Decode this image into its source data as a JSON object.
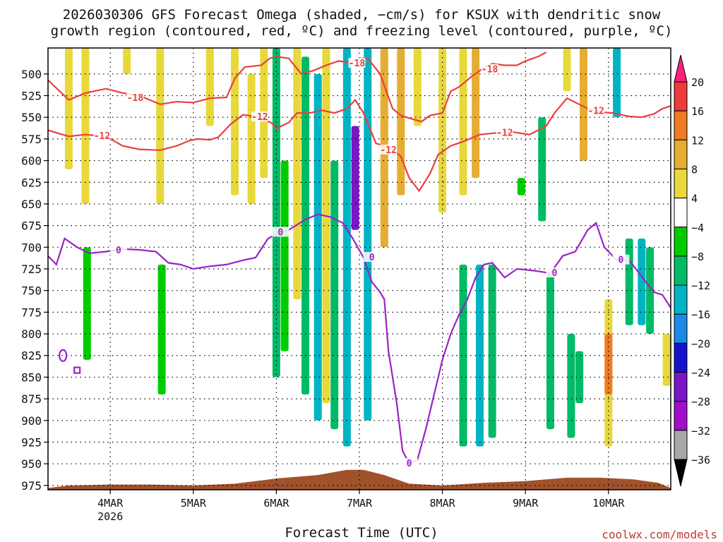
{
  "chart_data": {
    "type": "heatmap",
    "title_line1": "2026030306 GFS Forecast Omega (shaded, −cm/s) for KSUX with dendritic snow",
    "title_line2": "growth region (contoured, red, ºC) and freezing level (contoured, purple, ºC)",
    "xlabel": "Forecast Time (UTC)",
    "credit": "coolwx.com/models",
    "x_ticks": [
      {
        "label": "4MAR",
        "day": 4
      },
      {
        "label": "5MAR",
        "day": 5
      },
      {
        "label": "6MAR",
        "day": 6
      },
      {
        "label": "7MAR",
        "day": 7
      },
      {
        "label": "8MAR",
        "day": 8
      },
      {
        "label": "9MAR",
        "day": 9
      },
      {
        "label": "10MAR",
        "day": 10
      }
    ],
    "x_sublabel": "2026",
    "xlim": [
      3.25,
      10.75
    ],
    "y_ticks": [
      500,
      525,
      550,
      575,
      600,
      625,
      650,
      675,
      700,
      725,
      750,
      775,
      800,
      825,
      850,
      875,
      900,
      925,
      950,
      975
    ],
    "ylim": [
      470,
      980
    ],
    "grid": true,
    "colorbar": {
      "labels": [
        "20",
        "16",
        "12",
        "8",
        "4",
        "−4",
        "−8",
        "−12",
        "−16",
        "−20",
        "−24",
        "−28",
        "−32",
        "−36"
      ],
      "colors": [
        "#ff1f7a",
        "#ee3a3a",
        "#ef7b22",
        "#e5ad31",
        "#e8d83a",
        "#ffffff",
        "#00cc00",
        "#00bb66",
        "#00b4c4",
        "#1b8ae6",
        "#1414cc",
        "#7a16c6",
        "#a20ccc",
        "#a8a8a8",
        "#000000"
      ]
    },
    "shading": [
      {
        "day": 3.5,
        "p0": 470,
        "p1": 610,
        "value": 5
      },
      {
        "day": 3.7,
        "p0": 470,
        "p1": 650,
        "value": 5
      },
      {
        "day": 3.72,
        "p0": 700,
        "p1": 830,
        "value": -7
      },
      {
        "day": 4.2,
        "p0": 470,
        "p1": 500,
        "value": 5
      },
      {
        "day": 4.6,
        "p0": 470,
        "p1": 650,
        "value": 5
      },
      {
        "day": 4.62,
        "p0": 720,
        "p1": 870,
        "value": -7
      },
      {
        "day": 5.2,
        "p0": 470,
        "p1": 560,
        "value": 5
      },
      {
        "day": 5.5,
        "p0": 470,
        "p1": 640,
        "value": 5
      },
      {
        "day": 5.7,
        "p0": 500,
        "p1": 650,
        "value": 5
      },
      {
        "day": 5.85,
        "p0": 470,
        "p1": 620,
        "value": 6
      },
      {
        "day": 6.0,
        "p0": 470,
        "p1": 850,
        "value": -8
      },
      {
        "day": 6.1,
        "p0": 600,
        "p1": 820,
        "value": -7
      },
      {
        "day": 6.25,
        "p0": 470,
        "p1": 760,
        "value": 6
      },
      {
        "day": 6.35,
        "p0": 480,
        "p1": 870,
        "value": -9
      },
      {
        "day": 6.5,
        "p0": 500,
        "p1": 900,
        "value": -12
      },
      {
        "day": 6.6,
        "p0": 470,
        "p1": 880,
        "value": 6
      },
      {
        "day": 6.7,
        "p0": 600,
        "p1": 910,
        "value": -10
      },
      {
        "day": 6.85,
        "p0": 470,
        "p1": 930,
        "value": -14
      },
      {
        "day": 6.95,
        "p0": 560,
        "p1": 680,
        "value": -24
      },
      {
        "day": 7.1,
        "p0": 470,
        "p1": 900,
        "value": -12
      },
      {
        "day": 7.3,
        "p0": 470,
        "p1": 700,
        "value": 9
      },
      {
        "day": 7.5,
        "p0": 470,
        "p1": 640,
        "value": 8
      },
      {
        "day": 7.7,
        "p0": 470,
        "p1": 560,
        "value": 6
      },
      {
        "day": 8.0,
        "p0": 470,
        "p1": 660,
        "value": 5
      },
      {
        "day": 8.25,
        "p0": 470,
        "p1": 640,
        "value": 6
      },
      {
        "day": 8.4,
        "p0": 470,
        "p1": 620,
        "value": 10
      },
      {
        "day": 8.25,
        "p0": 720,
        "p1": 930,
        "value": -9
      },
      {
        "day": 8.45,
        "p0": 720,
        "p1": 930,
        "value": -14
      },
      {
        "day": 8.6,
        "p0": 720,
        "p1": 920,
        "value": -8
      },
      {
        "day": 8.95,
        "p0": 620,
        "p1": 640,
        "value": -7
      },
      {
        "day": 9.2,
        "p0": 550,
        "p1": 670,
        "value": -8
      },
      {
        "day": 9.3,
        "p0": 730,
        "p1": 910,
        "value": -10
      },
      {
        "day": 9.5,
        "p0": 470,
        "p1": 520,
        "value": 6
      },
      {
        "day": 9.55,
        "p0": 800,
        "p1": 920,
        "value": -9
      },
      {
        "day": 9.7,
        "p0": 470,
        "p1": 600,
        "value": 9
      },
      {
        "day": 9.65,
        "p0": 820,
        "p1": 880,
        "value": -8
      },
      {
        "day": 10.0,
        "p0": 760,
        "p1": 930,
        "value": 6
      },
      {
        "day": 10.0,
        "p0": 800,
        "p1": 870,
        "value": 14
      },
      {
        "day": 10.1,
        "p0": 470,
        "p1": 550,
        "value": -13
      },
      {
        "day": 10.25,
        "p0": 690,
        "p1": 790,
        "value": -9
      },
      {
        "day": 10.4,
        "p0": 690,
        "p1": 790,
        "value": -12
      },
      {
        "day": 10.5,
        "p0": 700,
        "p1": 800,
        "value": -8
      },
      {
        "day": 10.7,
        "p0": 800,
        "p1": 860,
        "value": 5
      }
    ],
    "contours": [
      {
        "name": "-18",
        "color": "#e84040",
        "points": [
          [
            3.25,
            507
          ],
          [
            3.5,
            530
          ],
          [
            3.7,
            522
          ],
          [
            3.95,
            517
          ],
          [
            4.15,
            522
          ],
          [
            4.35,
            525
          ],
          [
            4.6,
            535
          ],
          [
            4.8,
            532
          ],
          [
            5.0,
            533
          ],
          [
            5.2,
            528
          ],
          [
            5.4,
            527
          ],
          [
            5.5,
            505
          ],
          [
            5.62,
            492
          ],
          [
            5.82,
            490
          ],
          [
            5.92,
            482
          ],
          [
            6.0,
            480
          ],
          [
            6.15,
            482
          ],
          [
            6.3,
            500
          ],
          [
            6.45,
            496
          ],
          [
            6.6,
            490
          ],
          [
            6.75,
            485
          ],
          [
            6.9,
            487
          ],
          [
            7.0,
            482
          ],
          [
            7.1,
            482
          ],
          [
            7.25,
            500
          ],
          [
            7.4,
            540
          ],
          [
            7.5,
            548
          ],
          [
            7.6,
            551
          ],
          [
            7.75,
            555
          ],
          [
            7.85,
            548
          ],
          [
            8.0,
            545
          ],
          [
            8.1,
            520
          ],
          [
            8.2,
            515
          ],
          [
            8.35,
            503
          ],
          [
            8.5,
            493
          ],
          [
            8.6,
            488
          ],
          [
            8.75,
            490
          ],
          [
            8.9,
            490
          ],
          [
            9.0,
            485
          ],
          [
            9.15,
            480
          ],
          [
            9.25,
            475
          ]
        ]
      },
      {
        "name": "-12",
        "color": "#e84040",
        "points": [
          [
            3.25,
            565
          ],
          [
            3.5,
            572
          ],
          [
            3.7,
            570
          ],
          [
            3.95,
            572
          ],
          [
            4.15,
            583
          ],
          [
            4.35,
            587
          ],
          [
            4.6,
            588
          ],
          [
            4.8,
            583
          ],
          [
            4.95,
            577
          ],
          [
            5.05,
            575
          ],
          [
            5.2,
            576
          ],
          [
            5.3,
            573
          ],
          [
            5.45,
            558
          ],
          [
            5.6,
            547
          ],
          [
            5.8,
            550
          ],
          [
            5.95,
            557
          ],
          [
            6.0,
            563
          ],
          [
            6.15,
            556
          ],
          [
            6.25,
            545
          ],
          [
            6.4,
            545
          ],
          [
            6.55,
            542
          ],
          [
            6.7,
            545
          ],
          [
            6.85,
            540
          ],
          [
            6.95,
            530
          ],
          [
            7.05,
            545
          ],
          [
            7.2,
            580
          ],
          [
            7.35,
            585
          ],
          [
            7.5,
            595
          ],
          [
            7.6,
            620
          ],
          [
            7.72,
            635
          ],
          [
            7.85,
            615
          ],
          [
            7.95,
            593
          ],
          [
            8.1,
            583
          ],
          [
            8.25,
            578
          ],
          [
            8.45,
            570
          ],
          [
            8.65,
            568
          ],
          [
            8.85,
            567
          ],
          [
            9.05,
            570
          ],
          [
            9.15,
            565
          ],
          [
            9.25,
            560
          ],
          [
            9.35,
            545
          ],
          [
            9.5,
            528
          ],
          [
            9.75,
            540
          ],
          [
            9.9,
            544
          ],
          [
            10.05,
            545
          ],
          [
            10.25,
            549
          ],
          [
            10.4,
            550
          ],
          [
            10.55,
            546
          ],
          [
            10.65,
            540
          ],
          [
            10.75,
            537
          ]
        ]
      },
      {
        "name": "0",
        "color": "#9a22c8",
        "points": [
          [
            3.25,
            710
          ],
          [
            3.35,
            720
          ],
          [
            3.45,
            690
          ],
          [
            3.6,
            700
          ],
          [
            3.75,
            707
          ],
          [
            3.95,
            705
          ],
          [
            4.15,
            702
          ],
          [
            4.35,
            703
          ],
          [
            4.55,
            705
          ],
          [
            4.7,
            718
          ],
          [
            4.85,
            720
          ],
          [
            5.0,
            725
          ],
          [
            5.2,
            722
          ],
          [
            5.4,
            720
          ],
          [
            5.6,
            715
          ],
          [
            5.75,
            712
          ],
          [
            5.9,
            690
          ],
          [
            6.0,
            685
          ],
          [
            6.15,
            680
          ],
          [
            6.35,
            668
          ],
          [
            6.5,
            662
          ],
          [
            6.65,
            665
          ],
          [
            6.8,
            672
          ],
          [
            6.92,
            690
          ],
          [
            7.05,
            712
          ],
          [
            7.15,
            740
          ],
          [
            7.25,
            752
          ],
          [
            7.3,
            760
          ],
          [
            7.35,
            820
          ],
          [
            7.45,
            880
          ],
          [
            7.52,
            935
          ],
          [
            7.6,
            950
          ],
          [
            7.7,
            945
          ],
          [
            7.8,
            910
          ],
          [
            7.9,
            870
          ],
          [
            8.0,
            830
          ],
          [
            8.1,
            800
          ],
          [
            8.2,
            778
          ],
          [
            8.3,
            760
          ],
          [
            8.4,
            735
          ],
          [
            8.5,
            720
          ],
          [
            8.6,
            718
          ],
          [
            8.75,
            735
          ],
          [
            8.9,
            725
          ],
          [
            9.1,
            727
          ],
          [
            9.3,
            730
          ],
          [
            9.45,
            710
          ],
          [
            9.6,
            705
          ],
          [
            9.75,
            680
          ],
          [
            9.85,
            672
          ],
          [
            9.95,
            700
          ],
          [
            10.1,
            715
          ],
          [
            10.25,
            715
          ],
          [
            10.45,
            740
          ],
          [
            10.55,
            752
          ],
          [
            10.65,
            755
          ],
          [
            10.75,
            770
          ]
        ]
      }
    ],
    "contour_labels": [
      {
        "text": "-18",
        "day": 4.3,
        "p": 528,
        "color": "#e84040"
      },
      {
        "text": "-18",
        "day": 6.97,
        "p": 488,
        "color": "#e84040"
      },
      {
        "text": "-18",
        "day": 8.57,
        "p": 495,
        "color": "#e84040"
      },
      {
        "text": "-12",
        "day": 3.9,
        "p": 572,
        "color": "#e84040"
      },
      {
        "text": "-12",
        "day": 5.8,
        "p": 550,
        "color": "#e84040"
      },
      {
        "text": "-12",
        "day": 7.35,
        "p": 588,
        "color": "#e84040"
      },
      {
        "text": "-12",
        "day": 8.75,
        "p": 568,
        "color": "#e84040"
      },
      {
        "text": "-12",
        "day": 9.85,
        "p": 543,
        "color": "#e84040"
      },
      {
        "text": "0",
        "day": 4.1,
        "p": 704,
        "color": "#9a22c8"
      },
      {
        "text": "0",
        "day": 6.05,
        "p": 683,
        "color": "#9a22c8"
      },
      {
        "text": "0",
        "day": 7.15,
        "p": 712,
        "color": "#9a22c8"
      },
      {
        "text": "0",
        "day": 7.6,
        "p": 950,
        "color": "#9a22c8"
      },
      {
        "text": "0",
        "day": 9.35,
        "p": 730,
        "color": "#9a22c8"
      },
      {
        "text": "0",
        "day": 10.15,
        "p": 715,
        "color": "#9a22c8"
      }
    ],
    "terrain_color": "#a0522d",
    "terrain": [
      [
        3.25,
        978
      ],
      [
        3.5,
        975
      ],
      [
        4.0,
        974
      ],
      [
        4.5,
        974
      ],
      [
        5.0,
        975
      ],
      [
        5.5,
        973
      ],
      [
        6.0,
        967
      ],
      [
        6.5,
        963
      ],
      [
        6.85,
        957
      ],
      [
        7.05,
        957
      ],
      [
        7.3,
        963
      ],
      [
        7.6,
        973
      ],
      [
        8.0,
        975
      ],
      [
        8.5,
        972
      ],
      [
        9.0,
        970
      ],
      [
        9.5,
        966
      ],
      [
        9.9,
        966
      ],
      [
        10.3,
        968
      ],
      [
        10.6,
        972
      ],
      [
        10.75,
        978
      ]
    ]
  }
}
